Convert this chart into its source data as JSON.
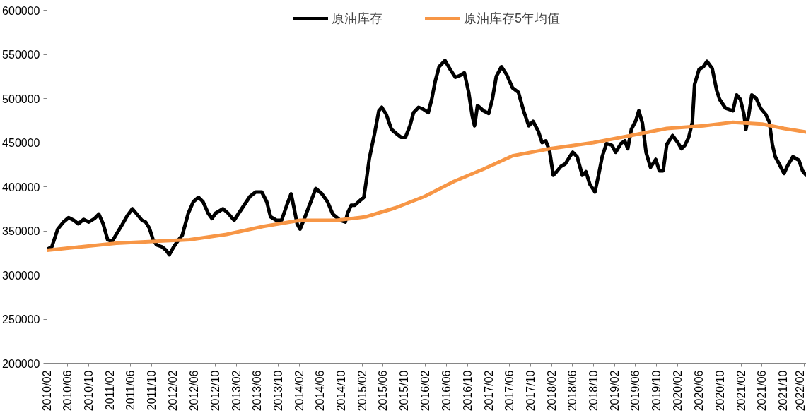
{
  "chart_data": {
    "type": "line",
    "legend": "top",
    "marker": "none",
    "line_style": "solid",
    "grid": false,
    "ylim": [
      200000,
      600000
    ],
    "yticks": [
      200000,
      250000,
      300000,
      350000,
      400000,
      450000,
      500000,
      550000,
      600000
    ],
    "xlim": [
      "2010-02-01",
      "2022-02-14"
    ],
    "xticks": [
      {
        "value": "2010-02",
        "label": "2010/02"
      },
      {
        "value": "2010-06",
        "label": "2010/06"
      },
      {
        "value": "2010-10",
        "label": "2010/10"
      },
      {
        "value": "2011-02",
        "label": "2011/02"
      },
      {
        "value": "2011-06",
        "label": "2011/06"
      },
      {
        "value": "2011-10",
        "label": "2011/10"
      },
      {
        "value": "2012-02",
        "label": "2012/02"
      },
      {
        "value": "2012-06",
        "label": "2012/06"
      },
      {
        "value": "2012-10",
        "label": "2012/10"
      },
      {
        "value": "2013-02",
        "label": "2013/02"
      },
      {
        "value": "2013-06",
        "label": "2013/06"
      },
      {
        "value": "2013-10",
        "label": "2013/10"
      },
      {
        "value": "2014-02",
        "label": "2014/02"
      },
      {
        "value": "2014-06",
        "label": "2014/06"
      },
      {
        "value": "2014-10",
        "label": "2014/10"
      },
      {
        "value": "2015-02",
        "label": "2015/02"
      },
      {
        "value": "2015-06",
        "label": "2015/06"
      },
      {
        "value": "2015-10",
        "label": "2015/10"
      },
      {
        "value": "2016-02",
        "label": "2016/02"
      },
      {
        "value": "2016-06",
        "label": "2016/06"
      },
      {
        "value": "2016-10",
        "label": "2016/10"
      },
      {
        "value": "2017-02",
        "label": "2017/02"
      },
      {
        "value": "2017-06",
        "label": "2017/06"
      },
      {
        "value": "2017-10",
        "label": "2017/10"
      },
      {
        "value": "2018-02",
        "label": "2018/02"
      },
      {
        "value": "2018-06",
        "label": "2018/06"
      },
      {
        "value": "2018-10",
        "label": "2018/10"
      },
      {
        "value": "2019-02",
        "label": "2019/02"
      },
      {
        "value": "2019-06",
        "label": "2019/06"
      },
      {
        "value": "2019-10",
        "label": "2019/10"
      },
      {
        "value": "2020-02",
        "label": "2020/02"
      },
      {
        "value": "2020-06",
        "label": "2020/06"
      },
      {
        "value": "2020-10",
        "label": "2020/10"
      },
      {
        "value": "2021-02",
        "label": "2021/02"
      },
      {
        "value": "2021-06",
        "label": "2021/06"
      },
      {
        "value": "2021-10",
        "label": "2021/10"
      },
      {
        "value": "2022-02",
        "label": "2022/02"
      }
    ],
    "series": [
      {
        "name": "原油库存",
        "color": "#000000",
        "x": [
          "2010-02-01",
          "2010-03-01",
          "2010-04-04",
          "2010-05-07",
          "2010-06-06",
          "2010-07-06",
          "2010-08-01",
          "2010-09-01",
          "2010-10-01",
          "2010-11-03",
          "2010-11-28",
          "2010-12-23",
          "2011-01-18",
          "2011-02-13",
          "2011-03-09",
          "2011-04-12",
          "2011-05-11",
          "2011-06-10",
          "2011-07-06",
          "2011-08-05",
          "2011-08-26",
          "2011-09-17",
          "2011-10-08",
          "2011-10-29",
          "2011-11-28",
          "2011-12-23",
          "2012-01-10",
          "2012-02-05",
          "2012-03-04",
          "2012-03-25",
          "2012-04-29",
          "2012-05-28",
          "2012-06-27",
          "2012-07-23",
          "2012-08-22",
          "2012-09-13",
          "2012-10-04",
          "2012-11-16",
          "2012-12-15",
          "2013-01-19",
          "2013-02-22",
          "2013-03-21",
          "2013-04-21",
          "2013-05-24",
          "2013-06-28",
          "2013-07-27",
          "2013-08-18",
          "2013-09-21",
          "2013-10-21",
          "2013-11-20",
          "2013-12-15",
          "2014-01-02",
          "2014-01-19",
          "2014-02-05",
          "2014-02-26",
          "2014-04-08",
          "2014-05-07",
          "2014-06-11",
          "2014-07-14",
          "2014-08-13",
          "2014-09-25",
          "2014-10-25",
          "2014-11-07",
          "2014-11-28",
          "2014-12-19",
          "2015-01-10",
          "2015-02-09",
          "2015-02-22",
          "2015-03-13",
          "2015-04-12",
          "2015-05-07",
          "2015-05-24",
          "2015-06-19",
          "2015-07-19",
          "2015-08-18",
          "2015-09-13",
          "2015-10-08",
          "2015-11-03",
          "2015-11-24",
          "2015-12-23",
          "2016-01-18",
          "2016-02-17",
          "2016-03-08",
          "2016-03-29",
          "2016-04-20",
          "2016-05-24",
          "2016-06-23",
          "2016-07-23",
          "2016-08-18",
          "2016-09-13",
          "2016-10-08",
          "2016-10-29",
          "2016-11-11",
          "2016-11-28",
          "2017-01-02",
          "2017-02-01",
          "2017-02-22",
          "2017-03-17",
          "2017-04-16",
          "2017-05-16",
          "2017-06-19",
          "2017-07-23",
          "2017-08-22",
          "2017-09-21",
          "2017-10-16",
          "2017-11-15",
          "2017-12-07",
          "2017-12-28",
          "2018-01-19",
          "2018-02-10",
          "2018-03-01",
          "2018-03-26",
          "2018-04-21",
          "2018-05-16",
          "2018-06-03",
          "2018-06-28",
          "2018-07-28",
          "2018-08-18",
          "2018-09-09",
          "2018-10-09",
          "2018-10-30",
          "2018-11-20",
          "2018-12-15",
          "2019-01-15",
          "2019-02-06",
          "2019-03-09",
          "2019-03-31",
          "2019-04-17",
          "2019-05-08",
          "2019-06-03",
          "2019-06-20",
          "2019-07-11",
          "2019-08-01",
          "2019-08-27",
          "2019-09-26",
          "2019-10-17",
          "2019-11-08",
          "2019-11-29",
          "2020-01-02",
          "2020-02-01",
          "2020-02-22",
          "2020-03-13",
          "2020-04-04",
          "2020-04-25",
          "2020-05-08",
          "2020-06-03",
          "2020-06-28",
          "2020-07-19",
          "2020-08-18",
          "2020-09-13",
          "2020-09-30",
          "2020-11-03",
          "2020-12-16",
          "2021-01-06",
          "2021-01-28",
          "2021-02-18",
          "2021-03-01",
          "2021-03-18",
          "2021-04-04",
          "2021-04-30",
          "2021-05-25",
          "2021-06-24",
          "2021-07-15",
          "2021-08-01",
          "2021-08-18",
          "2021-09-09",
          "2021-10-08",
          "2021-10-29",
          "2021-11-28",
          "2022-01-02",
          "2022-01-23",
          "2022-02-14"
        ],
        "values": [
          329000,
          332000,
          352000,
          360000,
          365000,
          362000,
          358000,
          363000,
          360000,
          364000,
          369000,
          358000,
          340000,
          338000,
          346000,
          357000,
          367000,
          375000,
          369000,
          362000,
          360000,
          353000,
          340000,
          334000,
          332000,
          328000,
          323000,
          332000,
          340000,
          345000,
          370000,
          383000,
          388000,
          383000,
          370000,
          364000,
          370000,
          375000,
          370000,
          362000,
          372000,
          380000,
          389000,
          394000,
          394000,
          383000,
          366000,
          362000,
          362000,
          379000,
          392000,
          375000,
          358000,
          352000,
          362000,
          383000,
          398000,
          392000,
          383000,
          369000,
          362000,
          360000,
          370000,
          379000,
          379000,
          383000,
          388000,
          405000,
          432000,
          460000,
          486000,
          490000,
          482000,
          465000,
          460000,
          456000,
          456000,
          469000,
          484000,
          490000,
          488000,
          484000,
          499000,
          520000,
          536000,
          543000,
          533000,
          524000,
          526000,
          529000,
          507000,
          480000,
          469000,
          492000,
          486000,
          483000,
          499000,
          525000,
          536000,
          527000,
          512000,
          507000,
          486000,
          469000,
          474000,
          463000,
          450000,
          452000,
          441000,
          413000,
          417000,
          423000,
          426000,
          434000,
          439000,
          434000,
          413000,
          417000,
          403000,
          394000,
          413000,
          434000,
          449000,
          447000,
          439000,
          449000,
          452000,
          443000,
          465000,
          475000,
          486000,
          472000,
          439000,
          422000,
          431000,
          418000,
          418000,
          448000,
          458000,
          450000,
          443000,
          447000,
          456000,
          473000,
          516000,
          533000,
          536000,
          542000,
          534000,
          509000,
          499000,
          489000,
          486000,
          504000,
          499000,
          482000,
          465000,
          482000,
          504000,
          500000,
          489000,
          482000,
          473000,
          448000,
          434000,
          426000,
          415000,
          424000,
          434000,
          430000,
          418000,
          413000
        ]
      },
      {
        "name": "原油库存5年均值",
        "color": "#f79646",
        "x": [
          "2010-02-01",
          "2011-03-09",
          "2012-05-07",
          "2012-12-06",
          "2013-07-06",
          "2014-02-05",
          "2014-09-04",
          "2015-02-22",
          "2015-08-10",
          "2016-01-27",
          "2016-07-15",
          "2017-01-02",
          "2017-06-19",
          "2018-01-19",
          "2018-10-01",
          "2019-05-04",
          "2019-11-29",
          "2020-06-28",
          "2020-12-16",
          "2021-06-03",
          "2021-10-08",
          "2022-02-14"
        ],
        "values": [
          328000,
          336000,
          340000,
          346000,
          355000,
          362000,
          362000,
          366000,
          376000,
          389000,
          406000,
          420000,
          435000,
          443000,
          450000,
          458000,
          466000,
          469000,
          473000,
          471000,
          466000,
          462000
        ]
      }
    ]
  }
}
